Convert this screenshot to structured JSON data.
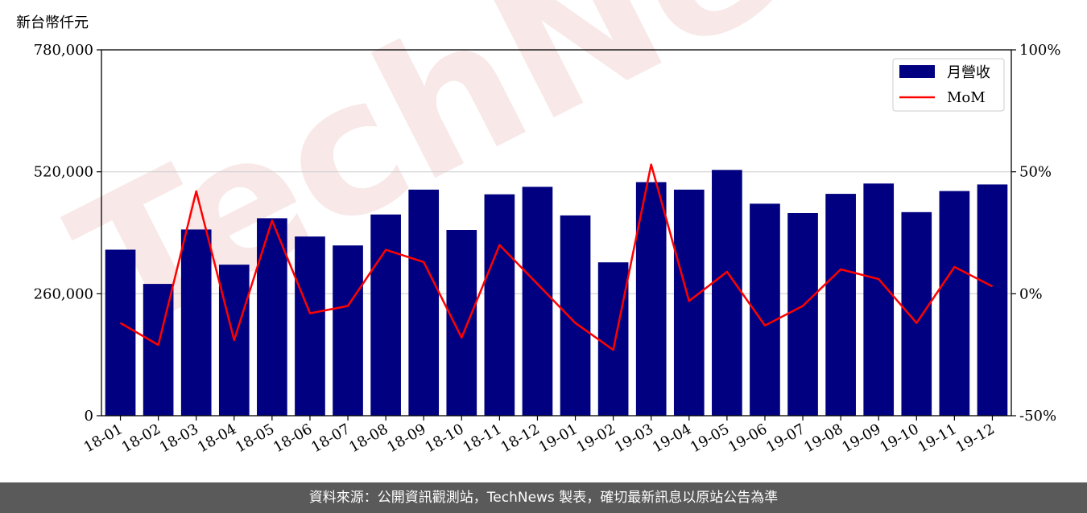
{
  "y_unit_label": "新台幣仟元",
  "footer_text": "資料來源：公開資訊觀測站，TechNews 製表，確切最新訊息以原站公告為準",
  "watermark_text": "TechNews",
  "colors": {
    "bar": "#000080",
    "line": "#ff0000",
    "footer_bg": "#5a5a5a"
  },
  "chart_data": {
    "type": "bar",
    "categories": [
      "18-01",
      "18-02",
      "18-03",
      "18-04",
      "18-05",
      "18-06",
      "18-07",
      "18-08",
      "18-09",
      "18-10",
      "18-11",
      "18-12",
      "19-01",
      "19-02",
      "19-03",
      "19-04",
      "19-05",
      "19-06",
      "19-07",
      "19-08",
      "19-09",
      "19-10",
      "19-11",
      "19-12"
    ],
    "series": [
      {
        "name": "月營收",
        "type": "bar",
        "axis": "left",
        "values": [
          354000,
          281000,
          397000,
          322000,
          421000,
          382000,
          363000,
          429000,
          482000,
          396000,
          472000,
          488000,
          427000,
          327000,
          498000,
          482000,
          524000,
          452000,
          432000,
          473000,
          495000,
          434000,
          479000,
          493000
        ]
      },
      {
        "name": "MoM",
        "type": "line",
        "axis": "right",
        "values": [
          -12,
          -21,
          42,
          -19,
          30,
          -8,
          -5,
          18,
          13,
          -18,
          20,
          4,
          -12,
          -23,
          53,
          -3,
          9,
          -13,
          -5,
          10,
          6,
          -12,
          11,
          3
        ]
      }
    ],
    "ylim_left": [
      0,
      780000
    ],
    "ylim_right": [
      -50,
      100
    ],
    "y_ticks_left": [
      "0",
      "260,000",
      "520,000",
      "780,000"
    ],
    "y_ticks_right": [
      "-50%",
      "0%",
      "50%",
      "100%"
    ],
    "grid": "horizontal",
    "legend_position": "top-right"
  }
}
